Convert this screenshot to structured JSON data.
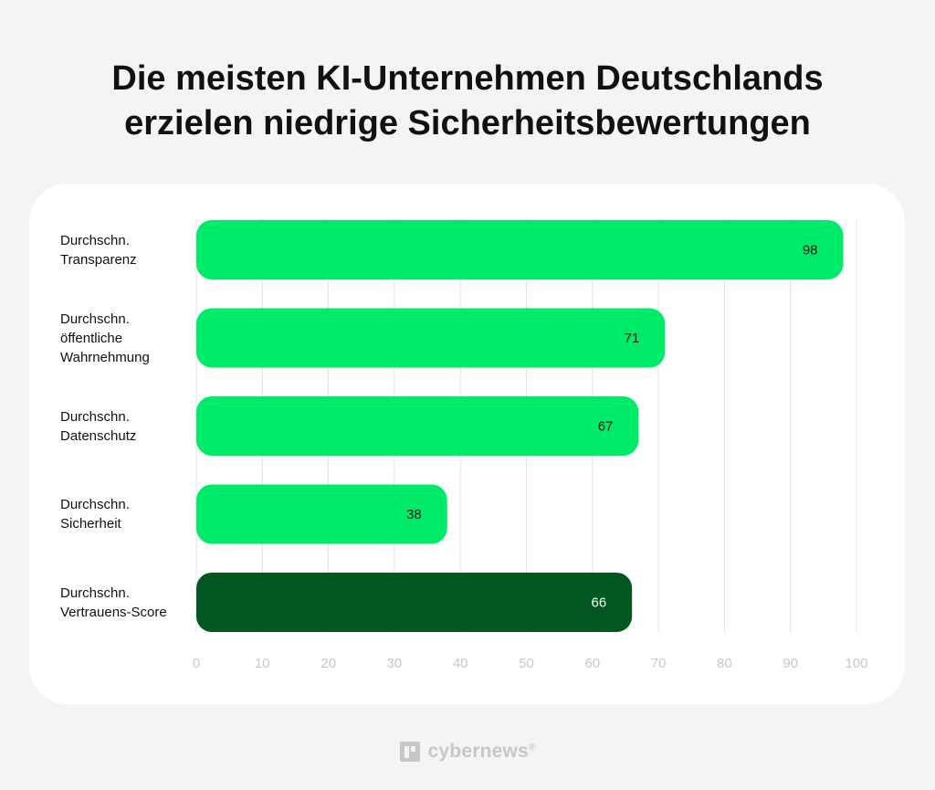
{
  "chart_data": {
    "type": "bar",
    "orientation": "horizontal",
    "title": [
      "Die meisten KI-Unternehmen Deutschlands",
      "erzielen niedrige Sicherheitsbewertungen"
    ],
    "categories": [
      [
        "Durchschn.",
        "Transparenz"
      ],
      [
        "Durchschn.",
        "öffentliche",
        "Wahrnehmung"
      ],
      [
        "Durchschn.",
        "Datenschutz"
      ],
      [
        "Durchschn.",
        "Sicherheit"
      ],
      [
        "Durchschn.",
        "Vertrauens-Score"
      ]
    ],
    "values": [
      98,
      71,
      67,
      38,
      66
    ],
    "xlim": [
      0,
      100
    ],
    "xticks": [
      0,
      10,
      20,
      30,
      40,
      50,
      60,
      70,
      80,
      90,
      100
    ],
    "grid": "vertical",
    "colors": {
      "bar": "#00eb6a",
      "highlight_bar": "#02561f",
      "label_dark": "#111111",
      "label_light": "#ffffff",
      "grid": "#e3e3e3",
      "tick": "#c8c8c8"
    },
    "highlight_index": 4
  },
  "footer": {
    "brand": "cybernews",
    "registered": "®",
    "icon": "cybernews-logo-icon"
  }
}
